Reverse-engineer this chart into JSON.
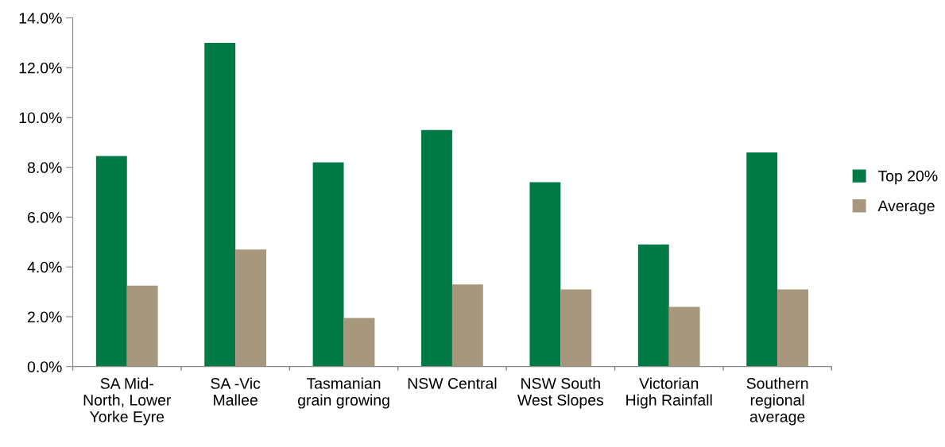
{
  "chart_data": {
    "type": "bar",
    "categories": [
      "SA Mid-\nNorth, Lower\nYorke Eyre",
      "SA -Vic\nMallee",
      "Tasmanian\ngrain growing",
      "NSW Central",
      "NSW South\nWest Slopes",
      "Victorian\nHigh Rainfall",
      "Southern\nregional\naverage"
    ],
    "series": [
      {
        "name": "Top 20%",
        "color": "#007a45",
        "values": [
          8.45,
          13.0,
          8.2,
          9.5,
          7.4,
          4.9,
          8.6
        ]
      },
      {
        "name": "Average",
        "color": "#a6977d",
        "values": [
          3.25,
          4.7,
          1.95,
          3.3,
          3.1,
          2.4,
          3.1
        ]
      }
    ],
    "ylim": [
      0,
      14
    ],
    "yticks": [
      {
        "value": 0,
        "label": "0.0%"
      },
      {
        "value": 2,
        "label": "2.0%"
      },
      {
        "value": 4,
        "label": "4.0%"
      },
      {
        "value": 6,
        "label": "6.0%"
      },
      {
        "value": 8,
        "label": "8.0%"
      },
      {
        "value": 10,
        "label": "10.0%"
      },
      {
        "value": 12,
        "label": "12.0%"
      },
      {
        "value": 14,
        "label": "14.0%"
      }
    ],
    "grid": false,
    "legend": "right"
  }
}
